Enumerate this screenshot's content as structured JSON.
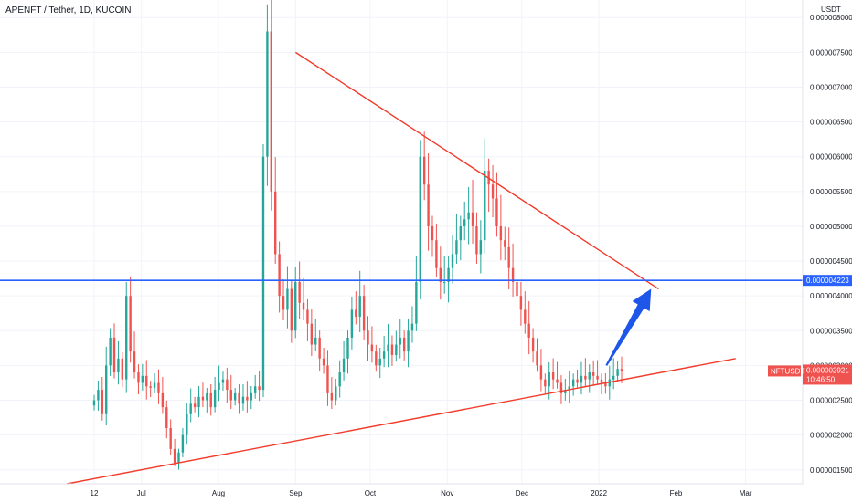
{
  "header": {
    "title": "APENFT / Tether, 1D, KUCOIN"
  },
  "colors": {
    "up": "#26a69a",
    "down": "#ef5350",
    "trendline": "#f23b2a",
    "level": "#2962ff",
    "arrow": "#1e56ea",
    "grid": "#f0f3fa",
    "last_price_badge": "#ef5350"
  },
  "chart_data": {
    "type": "candlestick",
    "title": "APENFT / Tether, 1D, KUCOIN",
    "quote_currency": "USDT",
    "x_ticks": [
      "12",
      "Jul",
      "Aug",
      "Sep",
      "Oct",
      "Nov",
      "Dec",
      "2022",
      "Feb",
      "Mar"
    ],
    "y_ticks": [
      "0.000001500",
      "0.000002000",
      "0.000002500",
      "0.000003000",
      "0.000003500",
      "0.000004000",
      "0.000004500",
      "0.000005000",
      "0.000005500",
      "0.000006000",
      "0.000006500",
      "0.000007000",
      "0.000007500",
      "0.000008000"
    ],
    "ylim": [
      1.3e-06,
      8.2e-06
    ],
    "start_date": "2021-06-12",
    "closes": [
      2.5e-06,
      2.65e-06,
      2.3e-06,
      3e-06,
      3.4e-06,
      2.9e-06,
      3.1e-06,
      2.8e-06,
      4e-06,
      3.2e-06,
      2.9e-06,
      2.75e-06,
      2.85e-06,
      2.7e-06,
      2.68e-06,
      2.75e-06,
      2.6e-06,
      2.4e-06,
      2.1e-06,
      1.8e-06,
      1.6e-06,
      1.75e-06,
      2e-06,
      2.3e-06,
      2.45e-06,
      2.4e-06,
      2.55e-06,
      2.5e-06,
      2.6e-06,
      2.4e-06,
      2.65e-06,
      2.75e-06,
      2.8e-06,
      2.65e-06,
      2.5e-06,
      2.6e-06,
      2.45e-06,
      2.55e-06,
      2.5e-06,
      2.6e-06,
      2.7e-06,
      2.65e-06,
      6e-06,
      7.8e-06,
      5.5e-06,
      4.6e-06,
      4e-06,
      3.8e-06,
      4.1e-06,
      3.5e-06,
      4.2e-06,
      3.9e-06,
      3.8e-06,
      3.6e-06,
      3.3e-06,
      3.4e-06,
      3.1e-06,
      3e-06,
      2.6e-06,
      2.5e-06,
      2.7e-06,
      2.9e-06,
      3.1e-06,
      3.4e-06,
      3.8e-06,
      3.7e-06,
      4e-06,
      3.5e-06,
      3.3e-06,
      3.2e-06,
      3e-06,
      3.1e-06,
      3.2e-06,
      3.3e-06,
      3.15e-06,
      3.3e-06,
      3.4e-06,
      3.2e-06,
      3.5e-06,
      3.6e-06,
      4.2e-06,
      6e-06,
      5.6e-06,
      5e-06,
      4.8e-06,
      4.4e-06,
      4.2e-06,
      4.2e-06,
      4.4e-06,
      4.6e-06,
      4.8e-06,
      5e-06,
      5.1e-06,
      5.2e-06,
      5e-06,
      4.6e-06,
      4.8e-06,
      5.8e-06,
      5.6e-06,
      5.4e-06,
      5e-06,
      4.8e-06,
      4.7e-06,
      4.4e-06,
      4.2e-06,
      4e-06,
      3.8e-06,
      3.6e-06,
      3.4e-06,
      3.2e-06,
      3e-06,
      2.8e-06,
      2.7e-06,
      2.9e-06,
      2.8e-06,
      2.75e-06,
      2.6e-06,
      2.65e-06,
      2.7e-06,
      2.8e-06,
      2.75e-06,
      2.85e-06,
      2.8e-06,
      2.9e-06,
      2.85e-06,
      2.8e-06,
      2.75e-06,
      2.7e-06,
      2.8e-06,
      2.85e-06,
      2.95e-06,
      2.92e-06
    ],
    "annotations": {
      "resistance_line": {
        "from": [
          "2021-09-01",
          7.5e-06
        ],
        "to": [
          "2022-01-25",
          4.1e-06
        ]
      },
      "support_line": {
        "from": [
          "2021-06-01",
          1.3e-06
        ],
        "to": [
          "2022-02-25",
          3.1e-06
        ]
      },
      "horizontal_level": 4.223e-06,
      "arrow": {
        "from": [
          "2022-01-04",
          3e-06
        ],
        "to": [
          "2022-01-22",
          4.1e-06
        ]
      }
    },
    "last_price": {
      "symbol": "NFTUSDT",
      "value": "0.000002921",
      "countdown": "10:46:50"
    },
    "level_label": "0.000004223"
  }
}
